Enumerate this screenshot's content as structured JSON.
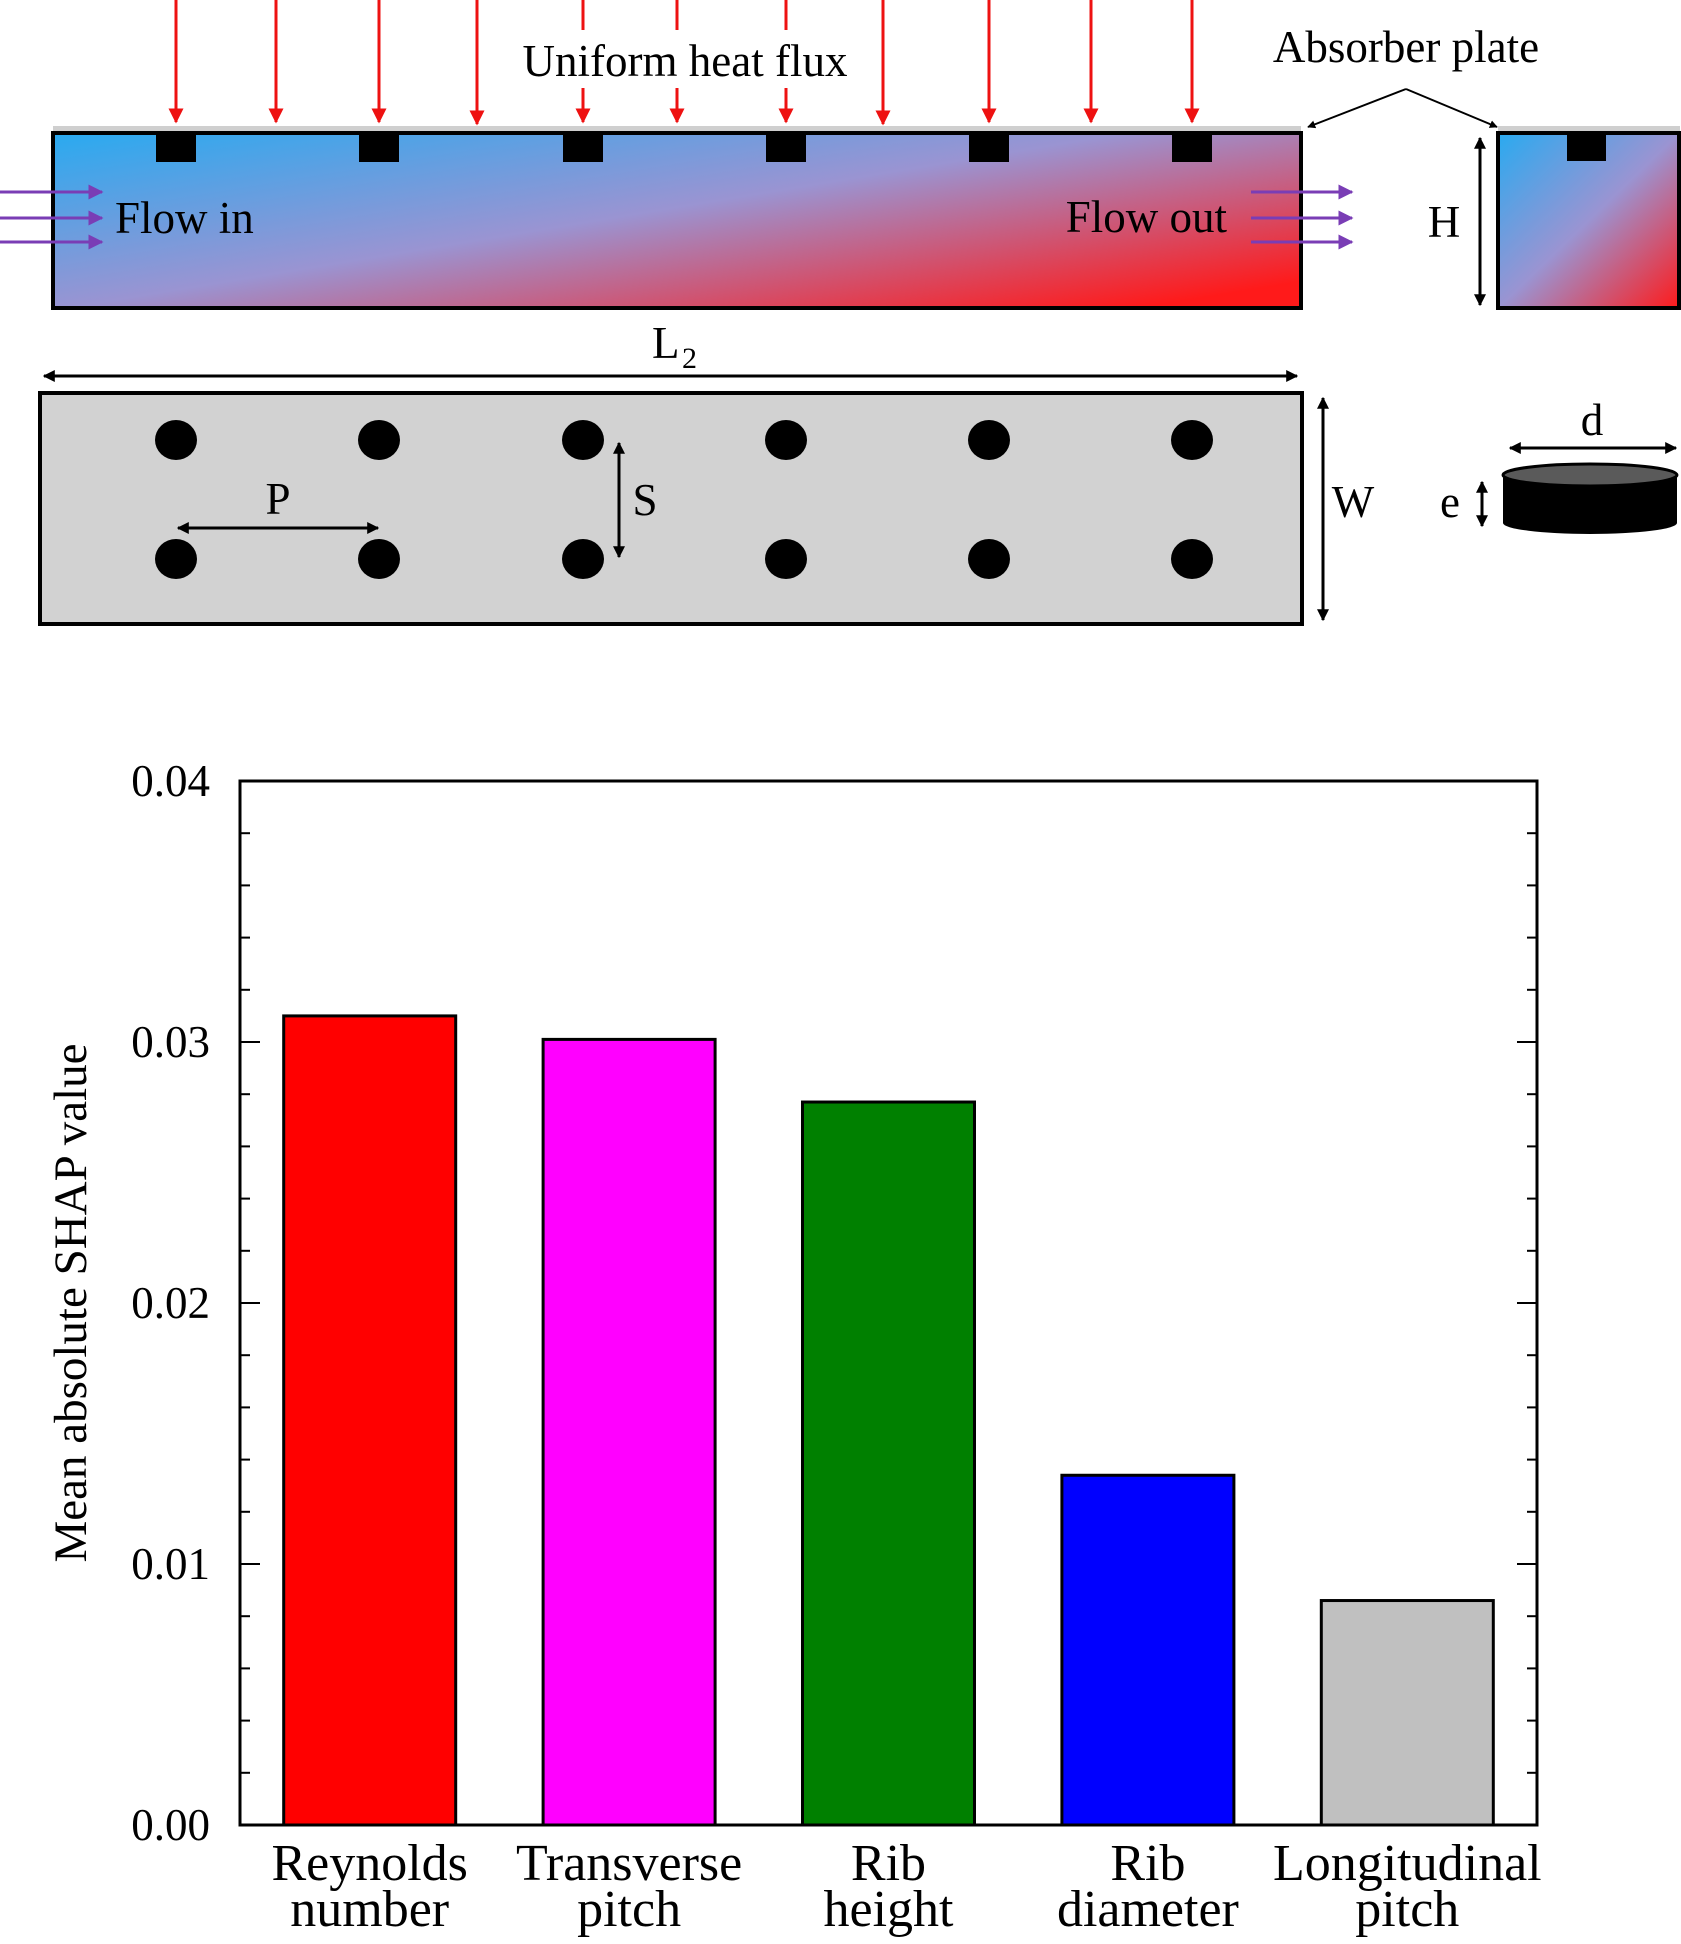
{
  "schematic": {
    "label_heat_flux": "Uniform heat flux",
    "label_absorber": "Absorber plate",
    "label_flow_in": "Flow in",
    "label_flow_out": "Flow out",
    "dim_H": "H",
    "dim_L": "L",
    "dim_L_sub": "2",
    "dim_W": "W",
    "dim_P": "P",
    "dim_S": "S",
    "dim_d": "d",
    "dim_e": "e",
    "colors": {
      "cold": "#29aaf0",
      "mid": "#9a94d2",
      "hot": "#ff1a1a",
      "heat_arrow": "#ee1111",
      "flow_arrow": "#7a3db5",
      "plate_bottom": "#d2d2d2"
    }
  },
  "chart_data": {
    "type": "bar",
    "categories": [
      "Reynolds\nnumber",
      "Transverse\npitch",
      "Rib\nheight",
      "Rib\ndiameter",
      "Longitudinal\npitch"
    ],
    "values": [
      0.031,
      0.0301,
      0.0277,
      0.0134,
      0.0086
    ],
    "colors": [
      "#ff0000",
      "#ff00ff",
      "#008000",
      "#0000ff",
      "#c0c0c0"
    ],
    "ylabel": "Mean absolute SHAP value",
    "xlabel": "",
    "ylim": [
      0,
      0.04
    ],
    "yticks": [
      "0.00",
      "0.01",
      "0.02",
      "0.03",
      "0.04"
    ],
    "grid": false
  }
}
